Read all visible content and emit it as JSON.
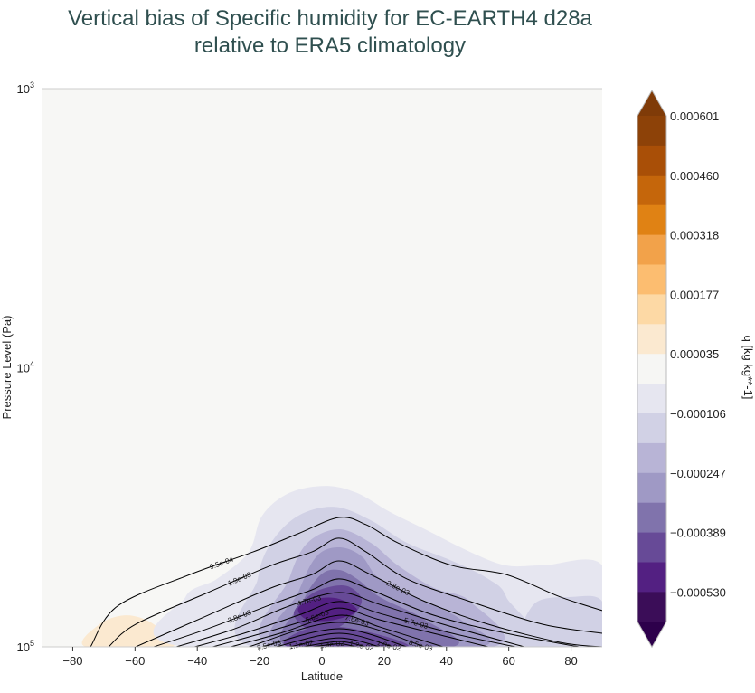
{
  "chart_data": {
    "type": "heatmap",
    "title_line1": "Vertical bias of Specific humidity for EC-EARTH4 d28a",
    "title_line2": "relative to ERA5 climatology",
    "xlabel": "Latitude",
    "ylabel": "Pressure Level (Pa)",
    "xlim": [
      -90,
      90
    ],
    "ylim": [
      100000,
      1000
    ],
    "yscale": "log",
    "x_ticks": [
      "−80",
      "−60",
      "−40",
      "−20",
      "0",
      "20",
      "40",
      "60",
      "80"
    ],
    "x_tick_values": [
      -80,
      -60,
      -40,
      -20,
      0,
      20,
      40,
      60,
      80
    ],
    "y_ticks": [
      {
        "base": "10",
        "exp": "3",
        "value": 1000
      },
      {
        "base": "10",
        "exp": "4",
        "value": 10000
      },
      {
        "base": "10",
        "exp": "5",
        "value": 100000
      }
    ],
    "background_color": "#f7f7f5",
    "colorbar": {
      "label": "q [kg kg**-1]",
      "extend": "both",
      "tick_labels": [
        "0.000601",
        "0.000460",
        "0.000318",
        "0.000177",
        "0.000035",
        "−0.000106",
        "−0.000247",
        "−0.000389",
        "−0.000530"
      ],
      "over_color": "#7f3b08",
      "under_color": "#2d004b",
      "band_colors": [
        "#8d4208",
        "#a94f07",
        "#c5660b",
        "#e08214",
        "#f2a24a",
        "#fcbd70",
        "#fdd9a5",
        "#fbe9d0",
        "#f6f6f4",
        "#e6e6f0",
        "#d1d1e5",
        "#b8b4d6",
        "#9f99c5",
        "#8073ac",
        "#674a97",
        "#532082",
        "#3b0d58"
      ]
    },
    "bias_regions": [
      {
        "color": "#fbe9d0",
        "points": [
          [
            -75.8,
            100000
          ],
          [
            -71.4,
            83000
          ],
          [
            -62.7,
            77100
          ],
          [
            -54,
            83000
          ],
          [
            -48.2,
            100000
          ]
        ]
      },
      {
        "color": "#fbe9d0",
        "points": [
          [
            -38,
            100000
          ],
          [
            -36.6,
            86100
          ],
          [
            -30.8,
            88100
          ],
          [
            -29.3,
            100000
          ]
        ]
      },
      {
        "color": "#fbe9d0",
        "points": [
          [
            80,
            100000
          ],
          [
            82.5,
            96400
          ],
          [
            85,
            100000
          ]
        ]
      },
      {
        "color": "#e6e6f0",
        "points": [
          [
            -43.8,
            100000
          ],
          [
            -43.8,
            66300
          ],
          [
            -33.7,
            57100
          ],
          [
            -23.5,
            45700
          ],
          [
            -19.2,
            33900
          ],
          [
            -10.5,
            28100
          ],
          [
            1.2,
            26500
          ],
          [
            11.3,
            28100
          ],
          [
            21.5,
            32700
          ],
          [
            33.1,
            37900
          ],
          [
            47.6,
            45700
          ],
          [
            59.2,
            51100
          ],
          [
            70.8,
            51100
          ],
          [
            90,
            51100
          ],
          [
            90,
            100000
          ]
        ]
      },
      {
        "color": "#d1d1e5",
        "points": [
          [
            -22.1,
            100000
          ],
          [
            -20.6,
            57100
          ],
          [
            -16.3,
            42400
          ],
          [
            -7.6,
            33900
          ],
          [
            4.1,
            31500
          ],
          [
            15.7,
            35200
          ],
          [
            27.3,
            42400
          ],
          [
            41.8,
            49200
          ],
          [
            53.4,
            57100
          ],
          [
            59.2,
            66300
          ],
          [
            62.1,
            100000
          ]
        ]
      },
      {
        "color": "#b8b4d6",
        "points": [
          [
            -16.3,
            100000
          ],
          [
            -10.5,
            57100
          ],
          [
            -4.6,
            42400
          ],
          [
            5.5,
            37900
          ],
          [
            15.7,
            42400
          ],
          [
            24.4,
            51100
          ],
          [
            36,
            61500
          ],
          [
            47.6,
            68800
          ],
          [
            54.9,
            100000
          ]
        ]
      },
      {
        "color": "#d1d1e5",
        "points": [
          [
            65,
            100000
          ],
          [
            68,
            70500
          ],
          [
            80,
            66300
          ],
          [
            90,
            68800
          ],
          [
            90,
            100000
          ]
        ]
      },
      {
        "color": "#9f99c5",
        "points": [
          [
            -13.4,
            100000
          ],
          [
            -7.6,
            63900
          ],
          [
            -1.7,
            47400
          ],
          [
            5.5,
            44000
          ],
          [
            12.8,
            47400
          ],
          [
            18.6,
            57100
          ],
          [
            33.1,
            68800
          ],
          [
            44.7,
            80000
          ],
          [
            50.5,
            100000
          ]
        ]
      },
      {
        "color": "#8073ac",
        "points": [
          [
            -10.5,
            100000
          ],
          [
            -6.1,
            68800
          ],
          [
            -0.3,
            55100
          ],
          [
            5.5,
            53000
          ],
          [
            11.3,
            57100
          ],
          [
            18.6,
            66300
          ],
          [
            33.1,
            80000
          ],
          [
            41.8,
            100000
          ]
        ]
      },
      {
        "color": "#674a97",
        "points": [
          [
            -9,
            77100
          ],
          [
            -4.6,
            66300
          ],
          [
            1.2,
            61500
          ],
          [
            8.4,
            60700
          ],
          [
            12.8,
            68800
          ],
          [
            7,
            83000
          ],
          [
            -1.7,
            89400
          ]
        ]
      },
      {
        "color": "#674a97",
        "points": [
          [
            -10.5,
            100000
          ],
          [
            -4.6,
            86100
          ],
          [
            10,
            86100
          ],
          [
            27.3,
            100000
          ]
        ]
      },
      {
        "color": "#532082",
        "points": [
          [
            -7.6,
            72600
          ],
          [
            -1.7,
            67300
          ],
          [
            5.5,
            67300
          ],
          [
            11.3,
            74100
          ],
          [
            4.1,
            80000
          ],
          [
            -4.6,
            80000
          ]
        ]
      }
    ],
    "contours": [
      {
        "label": "9.5e-04",
        "points": [
          [
            -74.3,
            100000
          ],
          [
            -65.6,
            71400
          ],
          [
            -42.4,
            55100
          ],
          [
            -22.1,
            45700
          ],
          [
            -7.6,
            39300
          ],
          [
            5.5,
            34400
          ],
          [
            14.2,
            36500
          ],
          [
            24.4,
            42400
          ],
          [
            41.8,
            51100
          ],
          [
            59.2,
            55100
          ],
          [
            76.6,
            66300
          ],
          [
            90,
            74100
          ]
        ]
      },
      {
        "label": "1.9e-03",
        "points": [
          [
            -68.5,
            100000
          ],
          [
            -59.8,
            83000
          ],
          [
            -36.6,
            63900
          ],
          [
            -16.3,
            51100
          ],
          [
            -3.2,
            45700
          ],
          [
            5.5,
            40800
          ],
          [
            14.2,
            45700
          ],
          [
            27.3,
            57100
          ],
          [
            47.6,
            68800
          ],
          [
            70.8,
            83000
          ],
          [
            90,
            89400
          ]
        ]
      },
      {
        "label": "2.8e-03",
        "points": [
          [
            -59.8,
            100000
          ],
          [
            -36.6,
            77100
          ],
          [
            -16.3,
            61500
          ],
          [
            -3.2,
            55100
          ],
          [
            5.5,
            49200
          ],
          [
            15.7,
            55100
          ],
          [
            33.1,
            68800
          ],
          [
            53.4,
            83000
          ],
          [
            76.6,
            96400
          ],
          [
            90,
            100000
          ]
        ]
      },
      {
        "label": "3.8e-03",
        "points": [
          [
            -54,
            100000
          ],
          [
            -36.6,
            86100
          ],
          [
            -16.3,
            70500
          ],
          [
            -3.2,
            62500
          ],
          [
            5.5,
            57100
          ],
          [
            15.7,
            62500
          ],
          [
            36,
            77100
          ],
          [
            59.2,
            89400
          ],
          [
            82.5,
            100000
          ]
        ]
      },
      {
        "label": "4.7e-03",
        "points": [
          [
            -46.7,
            100000
          ],
          [
            -27.9,
            86100
          ],
          [
            -10.5,
            71400
          ],
          [
            5.5,
            63900
          ],
          [
            18.6,
            70500
          ],
          [
            38.9,
            83000
          ],
          [
            65,
            100000
          ]
        ]
      },
      {
        "label": "5.7e-03",
        "points": [
          [
            -40.9,
            100000
          ],
          [
            -25,
            89400
          ],
          [
            -7.6,
            77100
          ],
          [
            5.5,
            68800
          ],
          [
            18.6,
            75900
          ],
          [
            41.8,
            89400
          ],
          [
            62.1,
            100000
          ]
        ]
      },
      {
        "label": "6.6e-03",
        "points": [
          [
            -35.1,
            100000
          ],
          [
            -19.2,
            89400
          ],
          [
            -4.6,
            80000
          ],
          [
            5.5,
            72600
          ],
          [
            18.6,
            80000
          ],
          [
            41.8,
            92900
          ],
          [
            53.4,
            100000
          ]
        ]
      },
      {
        "label": "7.6e-03",
        "points": [
          [
            -29.3,
            100000
          ],
          [
            -13.4,
            89400
          ],
          [
            5.5,
            77100
          ],
          [
            18.6,
            84900
          ],
          [
            38.9,
            100000
          ]
        ]
      },
      {
        "label": "8.5e-03",
        "points": [
          [
            -23.5,
            100000
          ],
          [
            5.5,
            81700
          ],
          [
            33.1,
            100000
          ]
        ]
      },
      {
        "label": "9.5e-03",
        "points": [
          [
            -19.2,
            100000
          ],
          [
            5.5,
            86100
          ],
          [
            27.3,
            100000
          ]
        ]
      },
      {
        "label": "1.0e-02",
        "points": [
          [
            -14.8,
            100000
          ],
          [
            5.5,
            89400
          ],
          [
            22.9,
            100000
          ]
        ]
      },
      {
        "label": "1.1e-02",
        "points": [
          [
            -10.5,
            100000
          ],
          [
            5.5,
            92900
          ],
          [
            18.6,
            100000
          ]
        ]
      },
      {
        "label": "1.2e-02",
        "points": [
          [
            -6.1,
            100000
          ],
          [
            5.5,
            95700
          ],
          [
            14.2,
            100000
          ]
        ]
      },
      {
        "label": "1.4e-02",
        "points": [
          [
            -3,
            100000
          ],
          [
            5.5,
            97500
          ],
          [
            11,
            100000
          ]
        ]
      }
    ]
  }
}
